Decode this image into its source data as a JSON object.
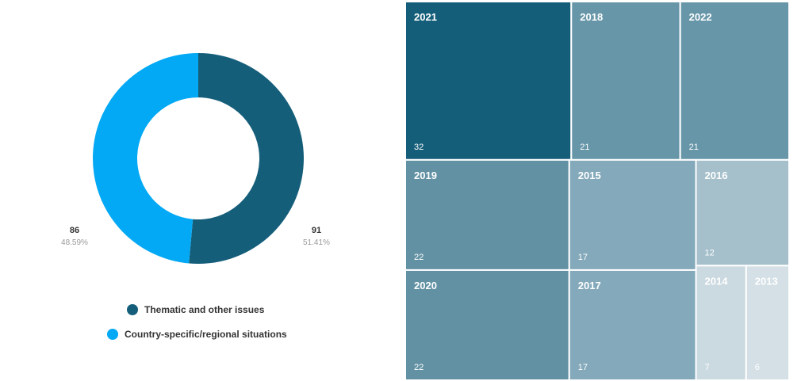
{
  "chart_data": [
    {
      "type": "pie",
      "title": "",
      "categories": [
        "Thematic and other issues",
        "Country-specific/regional situations"
      ],
      "values": [
        91,
        86
      ],
      "percent_labels": [
        "51.41%",
        "48.59%"
      ],
      "value_labels": [
        "91",
        "86"
      ],
      "colors": [
        "#155e7a",
        "#03a9f4"
      ],
      "legend_position": "bottom"
    },
    {
      "type": "treemap",
      "title": "",
      "categories": [
        "2021",
        "2018",
        "2022",
        "2019",
        "2015",
        "2016",
        "2020",
        "2017",
        "2014",
        "2013"
      ],
      "values": [
        32,
        21,
        21,
        22,
        17,
        12,
        22,
        17,
        7,
        6
      ],
      "value_labels": [
        "32",
        "21",
        "21",
        "22",
        "17",
        "12",
        "22",
        "17",
        "7",
        "6"
      ],
      "colors": [
        "#155e7a",
        "#6696a8",
        "#6696a8",
        "#6191a3",
        "#83a9ba",
        "#a5bfcb",
        "#6191a3",
        "#83a9ba",
        "#cbd9e0",
        "#d4e0e6"
      ]
    }
  ]
}
